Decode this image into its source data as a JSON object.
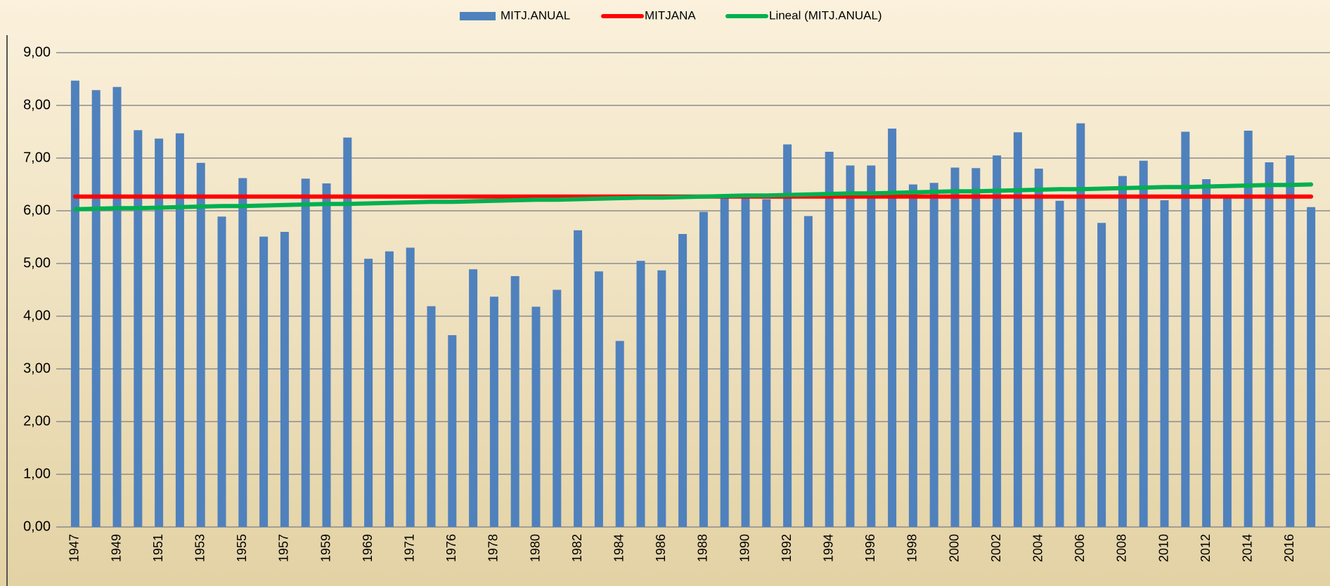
{
  "chart_data": {
    "type": "bar",
    "categories": [
      "1947",
      null,
      "1949",
      null,
      "1951",
      null,
      "1953",
      null,
      "1955",
      null,
      "1957",
      null,
      "1959",
      null,
      "1969",
      null,
      "1971",
      null,
      "1976",
      null,
      "1978",
      null,
      "1980",
      null,
      "1982",
      null,
      "1984",
      null,
      "1986",
      null,
      "1988",
      null,
      "1990",
      null,
      "1992",
      null,
      "1994",
      null,
      "1996",
      null,
      "1998",
      null,
      "2000",
      null,
      "2002",
      null,
      "2004",
      null,
      "2006",
      null,
      "2008",
      null,
      "2010",
      null,
      "2012",
      null,
      "2014",
      null,
      "2016",
      null
    ],
    "series": [
      {
        "name": "MITJ.ANUAL",
        "type": "bar",
        "color": "#4f81bd",
        "values": [
          8.47,
          8.29,
          8.35,
          7.53,
          7.37,
          7.47,
          6.91,
          5.89,
          6.62,
          5.51,
          5.6,
          6.61,
          6.52,
          7.39,
          5.09,
          5.23,
          5.3,
          4.19,
          3.64,
          4.89,
          4.37,
          4.76,
          4.18,
          4.5,
          5.63,
          4.85,
          3.53,
          5.05,
          4.87,
          5.56,
          5.98,
          6.24,
          6.25,
          6.22,
          7.26,
          5.9,
          7.12,
          6.86,
          6.86,
          7.56,
          6.5,
          6.53,
          6.82,
          6.81,
          7.05,
          7.49,
          6.8,
          6.19,
          7.66,
          5.77,
          6.66,
          6.95,
          6.2,
          7.5,
          6.6,
          6.25,
          7.52,
          6.92,
          7.05,
          6.07
        ]
      },
      {
        "name": "MITJANA",
        "type": "line",
        "color": "#ff0000",
        "values": [
          6.27,
          6.27,
          6.27,
          6.27,
          6.27,
          6.27,
          6.27,
          6.27,
          6.27,
          6.27,
          6.27,
          6.27,
          6.27,
          6.27,
          6.27,
          6.27,
          6.27,
          6.27,
          6.27,
          6.27,
          6.27,
          6.27,
          6.27,
          6.27,
          6.27,
          6.27,
          6.27,
          6.27,
          6.27,
          6.27,
          6.27,
          6.27,
          6.27,
          6.27,
          6.27,
          6.27,
          6.27,
          6.27,
          6.27,
          6.27,
          6.27,
          6.27,
          6.27,
          6.27,
          6.27,
          6.27,
          6.27,
          6.27,
          6.27,
          6.27,
          6.27,
          6.27,
          6.27,
          6.27,
          6.27,
          6.27,
          6.27,
          6.27,
          6.27,
          6.27
        ]
      },
      {
        "name": "Lineal (MITJ.ANUAL)",
        "type": "line",
        "color": "#00b050",
        "values": [
          6.03,
          6.04,
          6.05,
          6.05,
          6.06,
          6.07,
          6.08,
          6.09,
          6.09,
          6.1,
          6.11,
          6.12,
          6.13,
          6.13,
          6.14,
          6.15,
          6.16,
          6.17,
          6.17,
          6.18,
          6.19,
          6.2,
          6.21,
          6.21,
          6.22,
          6.23,
          6.24,
          6.25,
          6.25,
          6.26,
          6.27,
          6.28,
          6.29,
          6.29,
          6.3,
          6.31,
          6.32,
          6.33,
          6.33,
          6.34,
          6.35,
          6.36,
          6.37,
          6.37,
          6.38,
          6.39,
          6.4,
          6.41,
          6.41,
          6.42,
          6.43,
          6.44,
          6.45,
          6.45,
          6.46,
          6.47,
          6.48,
          6.49,
          6.49,
          6.5
        ]
      }
    ],
    "ylim": [
      0,
      9
    ],
    "yticks": [
      {
        "value": 0,
        "label": "0,00"
      },
      {
        "value": 1,
        "label": "1,00"
      },
      {
        "value": 2,
        "label": "2,00"
      },
      {
        "value": 3,
        "label": "3,00"
      },
      {
        "value": 4,
        "label": "4,00"
      },
      {
        "value": 5,
        "label": "5,00"
      },
      {
        "value": 6,
        "label": "6,00"
      },
      {
        "value": 7,
        "label": "7,00"
      },
      {
        "value": 8,
        "label": "8,00"
      },
      {
        "value": 9,
        "label": "9,00"
      }
    ],
    "grid": true,
    "legend": "top"
  }
}
